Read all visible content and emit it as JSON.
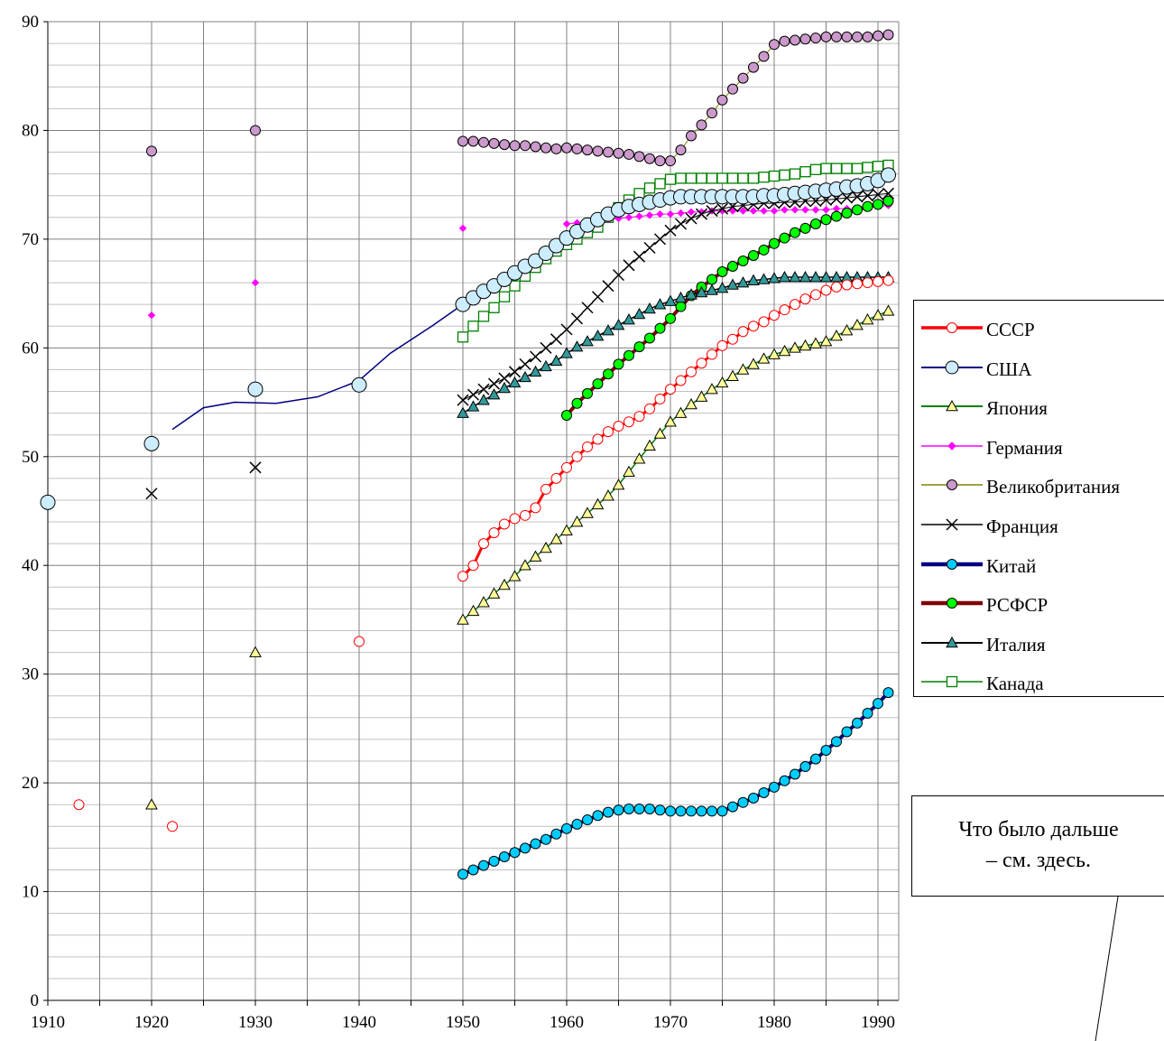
{
  "chart_data": {
    "type": "line",
    "title": "",
    "xlabel": "",
    "ylabel": "",
    "xlim": [
      1910,
      1992
    ],
    "ylim": [
      0,
      90
    ],
    "x_ticks": [
      "1910",
      "1920",
      "1930",
      "1940",
      "1950",
      "1960",
      "1970",
      "1980",
      "1990"
    ],
    "y_ticks": [
      "0",
      "10",
      "20",
      "30",
      "40",
      "50",
      "60",
      "70",
      "80",
      "90"
    ],
    "grid": true,
    "legend_position": "right",
    "series": [
      {
        "name": "СССР",
        "color": "#ff0000",
        "marker": "circle",
        "marker_fill": "#ffffff",
        "line_width": 3,
        "scatter": [
          [
            1913,
            18
          ],
          [
            1922,
            16
          ],
          [
            1940,
            33
          ]
        ],
        "x": [
          1950,
          1951,
          1952,
          1953,
          1954,
          1955,
          1956,
          1957,
          1958,
          1959,
          1960,
          1961,
          1962,
          1963,
          1964,
          1965,
          1966,
          1967,
          1968,
          1969,
          1970,
          1971,
          1972,
          1973,
          1974,
          1975,
          1976,
          1977,
          1978,
          1979,
          1980,
          1981,
          1982,
          1983,
          1984,
          1985,
          1986,
          1987,
          1988,
          1989,
          1990,
          1991
        ],
        "y": [
          39,
          40,
          42,
          43,
          43.8,
          44.3,
          44.6,
          45.3,
          47,
          48,
          49,
          50,
          50.9,
          51.6,
          52.3,
          52.8,
          53.2,
          53.7,
          54.4,
          55.3,
          56.2,
          57,
          57.8,
          58.6,
          59.4,
          60.2,
          60.8,
          61.5,
          62.0,
          62.4,
          63.0,
          63.5,
          64.0,
          64.5,
          64.9,
          65.3,
          65.6,
          65.8,
          65.9,
          66.0,
          66.1,
          66.2
        ]
      },
      {
        "name": "США",
        "color": "#000080",
        "marker": "circle",
        "marker_fill": "#ccecff",
        "line_width": 1.5,
        "scatter": [
          [
            1910,
            45.8
          ],
          [
            1920,
            51.2
          ],
          [
            1930,
            56.2
          ],
          [
            1940,
            56.6
          ]
        ],
        "curve": [
          [
            1922,
            52.5
          ],
          [
            1925,
            54.5
          ],
          [
            1928,
            55
          ],
          [
            1932,
            54.9
          ],
          [
            1936,
            55.5
          ],
          [
            1940,
            57
          ],
          [
            1943,
            59.5
          ],
          [
            1947,
            62
          ],
          [
            1950,
            64
          ]
        ],
        "x": [
          1950,
          1951,
          1952,
          1953,
          1954,
          1955,
          1956,
          1957,
          1958,
          1959,
          1960,
          1961,
          1962,
          1963,
          1964,
          1965,
          1966,
          1967,
          1968,
          1969,
          1970,
          1971,
          1972,
          1973,
          1974,
          1975,
          1976,
          1977,
          1978,
          1979,
          1980,
          1981,
          1982,
          1983,
          1984,
          1985,
          1986,
          1987,
          1988,
          1989,
          1990,
          1991
        ],
        "y": [
          64,
          64.6,
          65.2,
          65.7,
          66.3,
          66.9,
          67.5,
          68.0,
          68.7,
          69.4,
          70.1,
          70.7,
          71.3,
          71.8,
          72.3,
          72.7,
          73.0,
          73.2,
          73.4,
          73.6,
          73.8,
          73.9,
          73.9,
          73.9,
          73.9,
          73.9,
          73.9,
          73.9,
          73.9,
          74.0,
          74.0,
          74.1,
          74.2,
          74.3,
          74.4,
          74.5,
          74.6,
          74.8,
          74.9,
          75.1,
          75.4,
          75.9
        ]
      },
      {
        "name": "Япония",
        "color": "#008000",
        "marker": "triangle",
        "marker_fill": "#ffff99",
        "line_width": 1.5,
        "scatter": [
          [
            1920,
            18
          ],
          [
            1930,
            32
          ]
        ],
        "x": [
          1950,
          1951,
          1952,
          1953,
          1954,
          1955,
          1956,
          1957,
          1958,
          1959,
          1960,
          1961,
          1962,
          1963,
          1964,
          1965,
          1966,
          1967,
          1968,
          1969,
          1970,
          1971,
          1972,
          1973,
          1974,
          1975,
          1976,
          1977,
          1978,
          1979,
          1980,
          1981,
          1982,
          1983,
          1984,
          1985,
          1986,
          1987,
          1988,
          1989,
          1990,
          1991
        ],
        "y": [
          35,
          35.8,
          36.6,
          37.4,
          38.2,
          39,
          40,
          40.8,
          41.6,
          42.4,
          43.2,
          44,
          44.8,
          45.6,
          46.4,
          47.4,
          48.6,
          49.8,
          51,
          52.1,
          53.2,
          54,
          54.8,
          55.5,
          56.2,
          56.8,
          57.4,
          58.0,
          58.5,
          59.0,
          59.4,
          59.7,
          60.0,
          60.2,
          60.4,
          60.6,
          61.1,
          61.6,
          62.1,
          62.6,
          63.0,
          63.4
        ]
      },
      {
        "name": "Германия",
        "color": "#ff00ff",
        "marker": "diamond",
        "marker_fill": "#ff00ff",
        "line_width": 1,
        "scatter": [
          [
            1920,
            63
          ],
          [
            1930,
            66
          ],
          [
            1950,
            71
          ]
        ],
        "x": [
          1960,
          1961,
          1962,
          1963,
          1964,
          1965,
          1966,
          1967,
          1968,
          1969,
          1970,
          1971,
          1972,
          1973,
          1974,
          1975,
          1976,
          1977,
          1978,
          1979,
          1980,
          1981,
          1982,
          1983,
          1984,
          1985,
          1986,
          1987,
          1988,
          1989,
          1990,
          1991
        ],
        "y": [
          71.4,
          71.5,
          71.6,
          71.7,
          71.8,
          71.9,
          72.0,
          72.1,
          72.2,
          72.3,
          72.3,
          72.4,
          72.5,
          72.5,
          72.6,
          72.6,
          72.6,
          72.6,
          72.6,
          72.6,
          72.6,
          72.7,
          72.7,
          72.7,
          72.7,
          72.7,
          72.8,
          72.8,
          72.8,
          72.9,
          73.0,
          73.1
        ]
      },
      {
        "name": "Великобритания",
        "color": "#808000",
        "marker": "circle",
        "marker_fill": "#cc99cc",
        "line_width": 1,
        "scatter": [
          [
            1920,
            78.1
          ],
          [
            1930,
            80
          ]
        ],
        "x": [
          1950,
          1951,
          1952,
          1953,
          1954,
          1955,
          1956,
          1957,
          1958,
          1959,
          1960,
          1961,
          1962,
          1963,
          1964,
          1965,
          1966,
          1967,
          1968,
          1969,
          1970,
          1971,
          1972,
          1973,
          1974,
          1975,
          1976,
          1977,
          1978,
          1979,
          1980,
          1981,
          1982,
          1983,
          1984,
          1985,
          1986,
          1987,
          1988,
          1989,
          1990,
          1991
        ],
        "y": [
          79,
          79,
          78.9,
          78.8,
          78.7,
          78.6,
          78.6,
          78.5,
          78.4,
          78.3,
          78.4,
          78.3,
          78.2,
          78.1,
          78.0,
          77.9,
          77.8,
          77.6,
          77.4,
          77.2,
          77.2,
          78.2,
          79.5,
          80.5,
          81.6,
          82.8,
          83.8,
          84.8,
          85.8,
          86.8,
          87.9,
          88.2,
          88.3,
          88.4,
          88.5,
          88.6,
          88.6,
          88.6,
          88.6,
          88.6,
          88.7,
          88.8
        ]
      },
      {
        "name": "Франция",
        "color": "#000000",
        "marker": "x",
        "marker_fill": "none",
        "line_width": 1,
        "scatter": [
          [
            1920,
            46.6
          ],
          [
            1930,
            49
          ]
        ],
        "x": [
          1950,
          1951,
          1952,
          1953,
          1954,
          1955,
          1956,
          1957,
          1958,
          1959,
          1960,
          1961,
          1962,
          1963,
          1964,
          1965,
          1966,
          1967,
          1968,
          1969,
          1970,
          1971,
          1972,
          1973,
          1974,
          1975,
          1976,
          1977,
          1978,
          1979,
          1980,
          1981,
          1982,
          1983,
          1984,
          1985,
          1986,
          1987,
          1988,
          1989,
          1990,
          1991
        ],
        "y": [
          55.2,
          55.7,
          56.2,
          56.7,
          57.2,
          57.8,
          58.5,
          59.2,
          60.0,
          60.8,
          61.7,
          62.7,
          63.7,
          64.7,
          65.7,
          66.7,
          67.6,
          68.4,
          69.2,
          70.0,
          70.8,
          71.4,
          71.9,
          72.3,
          72.6,
          72.8,
          73.0,
          73.1,
          73.2,
          73.3,
          73.3,
          73.4,
          73.4,
          73.5,
          73.5,
          73.6,
          73.7,
          73.8,
          73.9,
          74.0,
          74.1,
          74.2
        ]
      },
      {
        "name": "Китай",
        "color": "#000080",
        "marker": "circle",
        "marker_fill": "#00ccff",
        "line_width": 4,
        "x": [
          1950,
          1951,
          1952,
          1953,
          1954,
          1955,
          1956,
          1957,
          1958,
          1959,
          1960,
          1961,
          1962,
          1963,
          1964,
          1965,
          1966,
          1967,
          1968,
          1969,
          1970,
          1971,
          1972,
          1973,
          1974,
          1975,
          1976,
          1977,
          1978,
          1979,
          1980,
          1981,
          1982,
          1983,
          1984,
          1985,
          1986,
          1987,
          1988,
          1989,
          1990,
          1991
        ],
        "y": [
          11.6,
          12.0,
          12.4,
          12.8,
          13.2,
          13.6,
          14.0,
          14.4,
          14.8,
          15.3,
          15.8,
          16.2,
          16.6,
          17.0,
          17.3,
          17.5,
          17.6,
          17.6,
          17.6,
          17.5,
          17.4,
          17.4,
          17.4,
          17.4,
          17.4,
          17.4,
          17.8,
          18.2,
          18.6,
          19.1,
          19.6,
          20.2,
          20.8,
          21.5,
          22.2,
          23.0,
          23.8,
          24.7,
          25.5,
          26.4,
          27.3,
          28.3
        ]
      },
      {
        "name": "РСФСР",
        "color": "#800000",
        "marker": "circle",
        "marker_fill": "#00ff00",
        "line_width": 4,
        "x": [
          1960,
          1961,
          1962,
          1963,
          1964,
          1965,
          1966,
          1967,
          1968,
          1969,
          1970,
          1971,
          1972,
          1973,
          1974,
          1975,
          1976,
          1977,
          1978,
          1979,
          1980,
          1981,
          1982,
          1983,
          1984,
          1985,
          1986,
          1987,
          1988,
          1989,
          1990,
          1991
        ],
        "y": [
          53.8,
          54.9,
          55.8,
          56.7,
          57.6,
          58.5,
          59.3,
          60.1,
          60.9,
          61.8,
          62.7,
          63.8,
          64.8,
          65.6,
          66.3,
          67.0,
          67.5,
          68.0,
          68.5,
          69.0,
          69.6,
          70.1,
          70.6,
          71.0,
          71.4,
          71.8,
          72.1,
          72.4,
          72.7,
          73.0,
          73.2,
          73.5
        ]
      },
      {
        "name": "Италия",
        "color": "#000000",
        "marker": "triangle",
        "marker_fill": "#339999",
        "line_width": 1.5,
        "x": [
          1950,
          1951,
          1952,
          1953,
          1954,
          1955,
          1956,
          1957,
          1958,
          1959,
          1960,
          1961,
          1962,
          1963,
          1964,
          1965,
          1966,
          1967,
          1968,
          1969,
          1970,
          1971,
          1972,
          1973,
          1974,
          1975,
          1976,
          1977,
          1978,
          1979,
          1980,
          1981,
          1982,
          1983,
          1984,
          1985,
          1986,
          1987,
          1988,
          1989,
          1990,
          1991
        ],
        "y": [
          54,
          54.6,
          55.2,
          55.7,
          56.3,
          56.8,
          57.3,
          57.8,
          58.3,
          58.8,
          59.5,
          60.1,
          60.6,
          61.1,
          61.6,
          62.1,
          62.6,
          63.1,
          63.6,
          64.0,
          64.3,
          64.6,
          64.9,
          65.1,
          65.3,
          65.5,
          65.8,
          66.0,
          66.2,
          66.3,
          66.4,
          66.5,
          66.5,
          66.5,
          66.5,
          66.5,
          66.5,
          66.5,
          66.5,
          66.5,
          66.5,
          66.5
        ]
      },
      {
        "name": "Канада",
        "color": "#008000",
        "marker": "square",
        "marker_fill": "#ffffff",
        "line_width": 1,
        "x": [
          1950,
          1951,
          1952,
          1953,
          1954,
          1955,
          1956,
          1957,
          1958,
          1959,
          1960,
          1961,
          1962,
          1963,
          1964,
          1965,
          1966,
          1967,
          1968,
          1969,
          1970,
          1971,
          1972,
          1973,
          1974,
          1975,
          1976,
          1977,
          1978,
          1979,
          1980,
          1981,
          1982,
          1983,
          1984,
          1985,
          1986,
          1987,
          1988,
          1989,
          1990,
          1991
        ],
        "y": [
          61,
          62,
          62.9,
          63.7,
          64.7,
          65.7,
          66.6,
          67.4,
          68.2,
          68.9,
          69.5,
          70.0,
          70.6,
          71.1,
          72.0,
          72.9,
          73.6,
          74.2,
          74.7,
          75.1,
          75.5,
          75.6,
          75.6,
          75.6,
          75.6,
          75.6,
          75.6,
          75.6,
          75.6,
          75.7,
          75.8,
          75.9,
          76.0,
          76.2,
          76.4,
          76.5,
          76.5,
          76.5,
          76.5,
          76.6,
          76.7,
          76.8
        ]
      }
    ]
  },
  "note": {
    "line1": "Что было дальше",
    "line2": "– см. здесь."
  }
}
